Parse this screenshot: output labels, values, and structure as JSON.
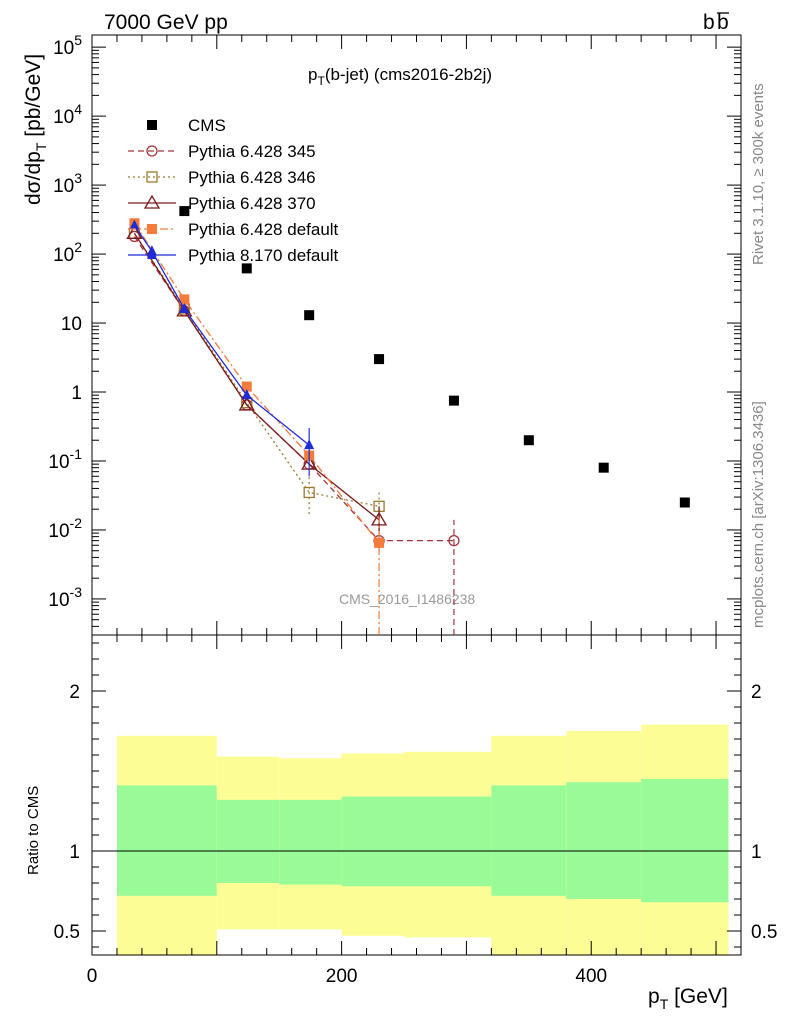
{
  "header": {
    "left": "7000 GeV pp",
    "right_b": "b",
    "right_bbar": "b"
  },
  "side": {
    "rivet": "Rivet 3.1.10, ≥ 300k events",
    "mcplots": "mcplots.cern.ch [arXiv:1306.3436]"
  },
  "analysis_id": "CMS_2016_I1486238",
  "chart_data": [
    {
      "type": "scatter",
      "title": "p_T(b-jet) (cms2016-2b2j)",
      "title_main": "p",
      "title_sub": "T",
      "title_rest": "(b-jet) (cms2016-2b2j)",
      "ylabel_main": "dσ/dp",
      "ylabel_sub": "T",
      "ylabel_rest": " [pb/GeV]",
      "xlim": [
        0,
        520
      ],
      "ylim": [
        0.0003,
        150000
      ],
      "yscale": "log",
      "ytick_values": [
        0.001,
        0.01,
        0.1,
        1,
        10,
        100,
        1000,
        10000,
        100000
      ],
      "ytick_labels": [
        {
          "base": "10",
          "exp": "-3"
        },
        {
          "base": "10",
          "exp": "-2"
        },
        {
          "base": "10",
          "exp": "-1"
        },
        {
          "base": "1",
          "exp": ""
        },
        {
          "base": "10",
          "exp": ""
        },
        {
          "base": "10",
          "exp": "2"
        },
        {
          "base": "10",
          "exp": "3"
        },
        {
          "base": "10",
          "exp": "4"
        },
        {
          "base": "10",
          "exp": "5"
        }
      ],
      "legend_placement": "top-left",
      "series": [
        {
          "name": "CMS",
          "color": "#000000",
          "marker": "filled-square",
          "line": "none",
          "x": [
            74,
            124,
            174,
            230,
            290,
            350,
            410,
            475
          ],
          "y": [
            420,
            62,
            13,
            3,
            0.75,
            0.2,
            0.08,
            0.025
          ]
        },
        {
          "name": "Pythia 6.428 345",
          "color": "#a3343d",
          "marker": "open-circle",
          "line": "dashed",
          "x": [
            34,
            74,
            124,
            174,
            230,
            290
          ],
          "y": [
            180,
            15,
            0.65,
            0.09,
            0.007,
            0.007
          ],
          "err": [
            [
              34,
              0,
              0
            ],
            [
              230,
              0.005,
              0.02
            ],
            [
              290,
              0.0001,
              0.014
            ]
          ]
        },
        {
          "name": "Pythia 6.428 346",
          "color": "#9a7a30",
          "marker": "open-square",
          "line": "dotted",
          "x": [
            34,
            74,
            124,
            174,
            230
          ],
          "y": [
            200,
            16,
            0.7,
            0.035,
            0.022
          ],
          "err": [
            [
              174,
              0.017,
              0.06
            ],
            [
              230,
              0.012,
              0.035
            ]
          ]
        },
        {
          "name": "Pythia 6.428 370",
          "color": "#7a1a1a",
          "marker": "open-triangle",
          "line": "solid",
          "x": [
            34,
            74,
            124,
            174,
            230
          ],
          "y": [
            200,
            15,
            0.65,
            0.09,
            0.014
          ],
          "err": [
            [
              230,
              0.008,
              0.022
            ]
          ]
        },
        {
          "name": "Pythia 6.428 default",
          "color": "#f47b3a",
          "marker": "filled-square",
          "line": "dashdot",
          "x": [
            34,
            74,
            124,
            174,
            230
          ],
          "y": [
            280,
            22,
            1.2,
            0.12,
            0.0065
          ],
          "err": [
            [
              230,
              0.0001,
              0.015
            ]
          ]
        },
        {
          "name": "Pythia 8.170 default",
          "color": "#1f2bd8",
          "marker": "filled-triangle",
          "line": "solid",
          "x": [
            34,
            48,
            74,
            124,
            174
          ],
          "y": [
            260,
            110,
            16,
            0.9,
            0.17
          ],
          "err": [
            [
              174,
              0.06,
              0.3
            ]
          ]
        }
      ]
    },
    {
      "type": "area",
      "ylabel": "Ratio to CMS",
      "xlabel_main": "p",
      "xlabel_sub": "T",
      "xlabel_rest": " [GeV]",
      "xlim": [
        0,
        520
      ],
      "ylim": [
        0.35,
        2.35
      ],
      "xticks": [
        0,
        200,
        400
      ],
      "ytick_labels": [
        "0.5",
        "1",
        "2"
      ],
      "ytick_values": [
        0.5,
        1,
        2
      ],
      "reference_line": 1,
      "bins": [
        {
          "x0": 20,
          "x1": 100,
          "yellow": [
            0.3,
            1.72
          ],
          "green": [
            0.72,
            1.41
          ]
        },
        {
          "x0": 100,
          "x1": 150,
          "yellow": [
            0.51,
            1.59
          ],
          "green": [
            0.8,
            1.32
          ]
        },
        {
          "x0": 150,
          "x1": 200,
          "yellow": [
            0.51,
            1.58
          ],
          "green": [
            0.79,
            1.32
          ]
        },
        {
          "x0": 200,
          "x1": 250,
          "yellow": [
            0.47,
            1.61
          ],
          "green": [
            0.78,
            1.34
          ]
        },
        {
          "x0": 250,
          "x1": 320,
          "yellow": [
            0.46,
            1.62
          ],
          "green": [
            0.78,
            1.34
          ]
        },
        {
          "x0": 320,
          "x1": 380,
          "yellow": [
            0.3,
            1.72
          ],
          "green": [
            0.72,
            1.41
          ]
        },
        {
          "x0": 380,
          "x1": 440,
          "yellow": [
            0.3,
            1.75
          ],
          "green": [
            0.7,
            1.43
          ]
        },
        {
          "x0": 440,
          "x1": 510,
          "yellow": [
            0.3,
            1.79
          ],
          "green": [
            0.68,
            1.45
          ]
        }
      ],
      "colors": {
        "yellow": "#fdfd96",
        "green": "#99fb98"
      }
    }
  ]
}
